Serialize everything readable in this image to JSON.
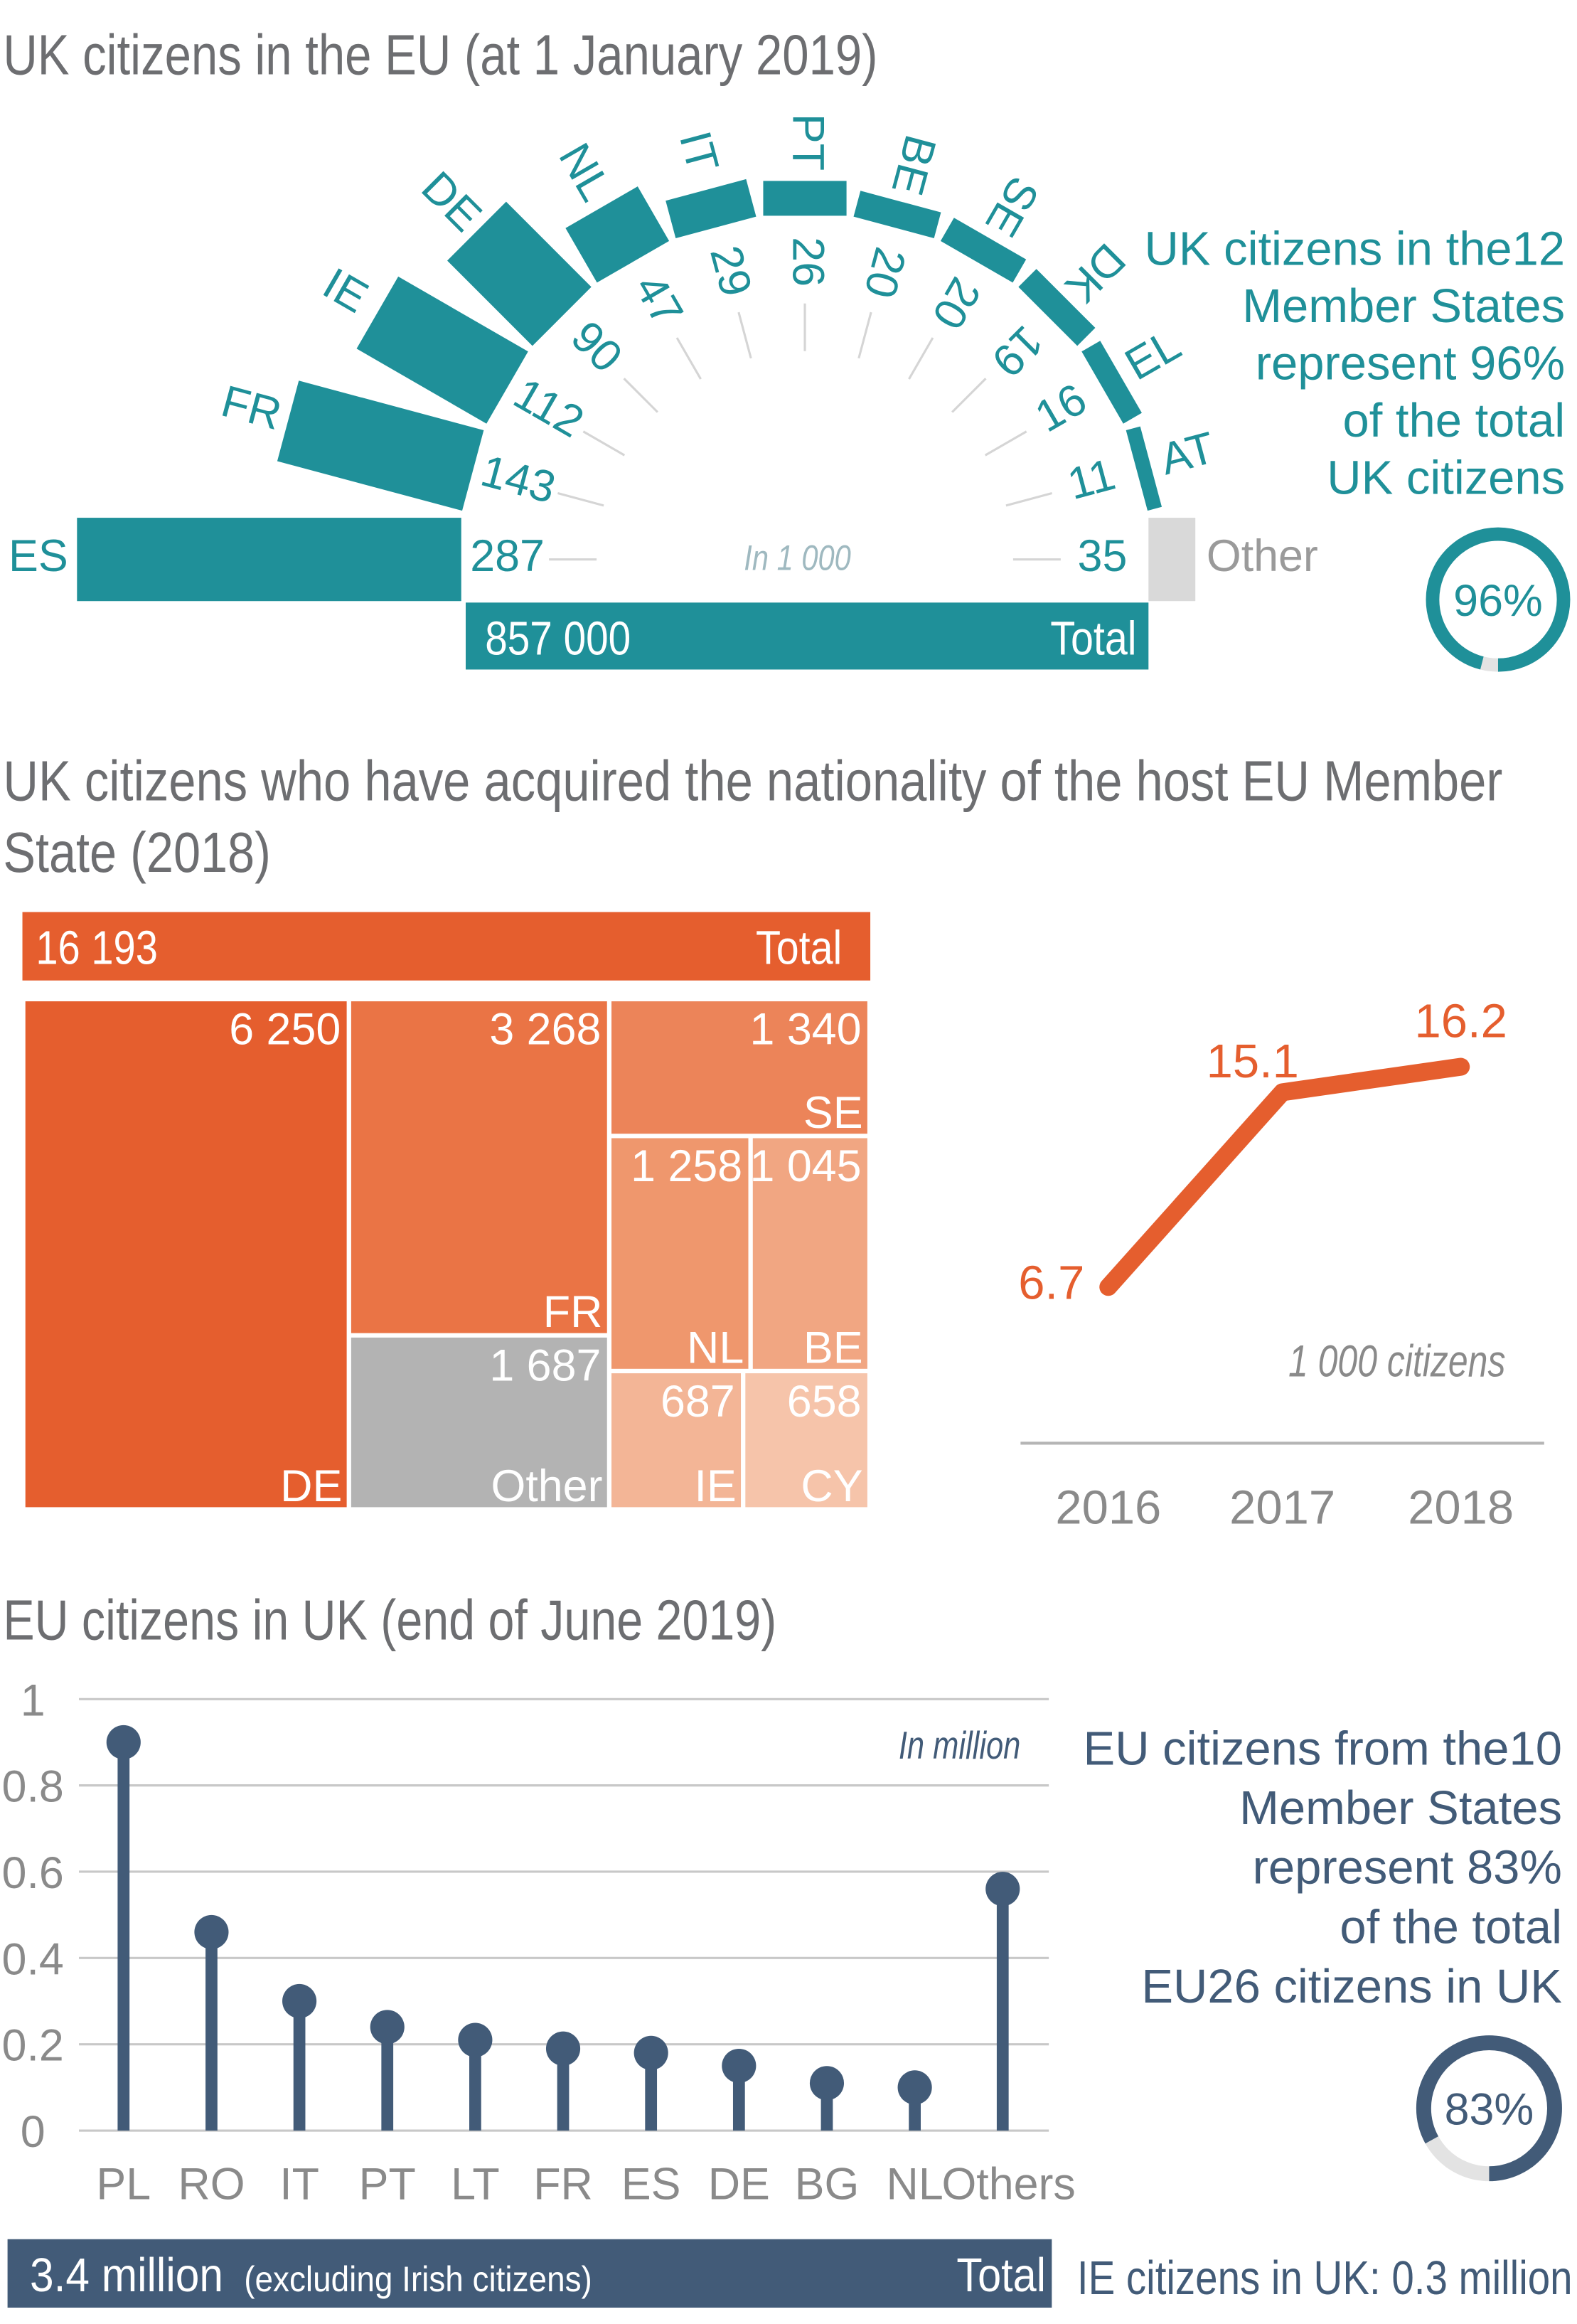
{
  "colors": {
    "teal": "#1f9099",
    "orange": "#e55e2e",
    "navy": "#425b78",
    "other_gray": "#d9d9d9",
    "treemap_gray": "#b3b3b3"
  },
  "chart_data": [
    {
      "type": "bar",
      "subtype": "radial",
      "title": "UK citizens in the EU (at 1 January 2019)",
      "unit_note": "In 1 000",
      "categories": [
        "ES",
        "FR",
        "IE",
        "DE",
        "NL",
        "IT",
        "PT",
        "BE",
        "SE",
        "DK",
        "EL",
        "AT",
        "Other"
      ],
      "values": [
        287,
        143,
        112,
        90,
        47,
        29,
        26,
        20,
        20,
        19,
        16,
        11,
        35
      ],
      "value_labels": [
        "287",
        "143",
        "112",
        "90",
        "47",
        "29",
        "26",
        "20",
        "20",
        "19",
        "16",
        "11",
        "35"
      ],
      "total": {
        "value": "857 000",
        "label": "Total"
      },
      "note": {
        "lines": [
          "UK citizens in the12",
          "Member States",
          "represent 96%",
          "of the total",
          "UK citizens"
        ],
        "donut_percent": 96,
        "donut_label": "96%"
      }
    },
    {
      "type": "heatmap",
      "subtype": "treemap",
      "title_lines": [
        "UK citizens who have acquired the nationality of the host EU Member",
        "State (2018)"
      ],
      "total": {
        "value": "16 193",
        "label": "Total"
      },
      "cells": [
        {
          "code": "DE",
          "value": 6250,
          "label": "6 250",
          "color": "#e55e2e"
        },
        {
          "code": "FR",
          "value": 3268,
          "label": "3 268",
          "color": "#ea7445"
        },
        {
          "code": "Other",
          "value": 1687,
          "label": "1 687",
          "color": "#b3b3b3"
        },
        {
          "code": "SE",
          "value": 1340,
          "label": "1 340",
          "color": "#ec8459"
        },
        {
          "code": "NL",
          "value": 1258,
          "label": "1 258",
          "color": "#ef976d"
        },
        {
          "code": "BE",
          "value": 1045,
          "label": "1 045",
          "color": "#f1a682"
        },
        {
          "code": "IE",
          "value": 687,
          "label": "687",
          "color": "#f3b596"
        },
        {
          "code": "CY",
          "value": 658,
          "label": "658",
          "color": "#f6c4aa"
        }
      ]
    },
    {
      "type": "line",
      "x": [
        "2016",
        "2017",
        "2018"
      ],
      "values": [
        6.7,
        15.1,
        16.2
      ],
      "value_labels": [
        "6.7",
        "15.1",
        "16.2"
      ],
      "unit_note": "1 000 citizens"
    },
    {
      "type": "bar",
      "subtype": "lollipop",
      "title": "EU citizens in UK (end of June 2019)",
      "unit_note": "In million",
      "categories": [
        "PL",
        "RO",
        "IT",
        "PT",
        "LT",
        "FR",
        "ES",
        "DE",
        "BG",
        "NL",
        "Others"
      ],
      "values": [
        0.9,
        0.46,
        0.3,
        0.24,
        0.21,
        0.19,
        0.18,
        0.15,
        0.11,
        0.1,
        0.56
      ],
      "ylim": [
        0,
        1
      ],
      "yticks": [
        "0",
        "0.2",
        "0.4",
        "0.6",
        "0.8",
        "1"
      ],
      "grid": true,
      "total": {
        "value": "3.4 million",
        "note": "(excluding Irish citizens)",
        "label": "Total"
      },
      "ie_note": "IE citizens in UK: 0.3 million",
      "note": {
        "lines": [
          "EU citizens from the10",
          "Member States",
          "represent 83%",
          "of the total",
          "EU26 citizens in UK"
        ],
        "donut_percent": 83,
        "donut_label": "83%"
      }
    }
  ]
}
